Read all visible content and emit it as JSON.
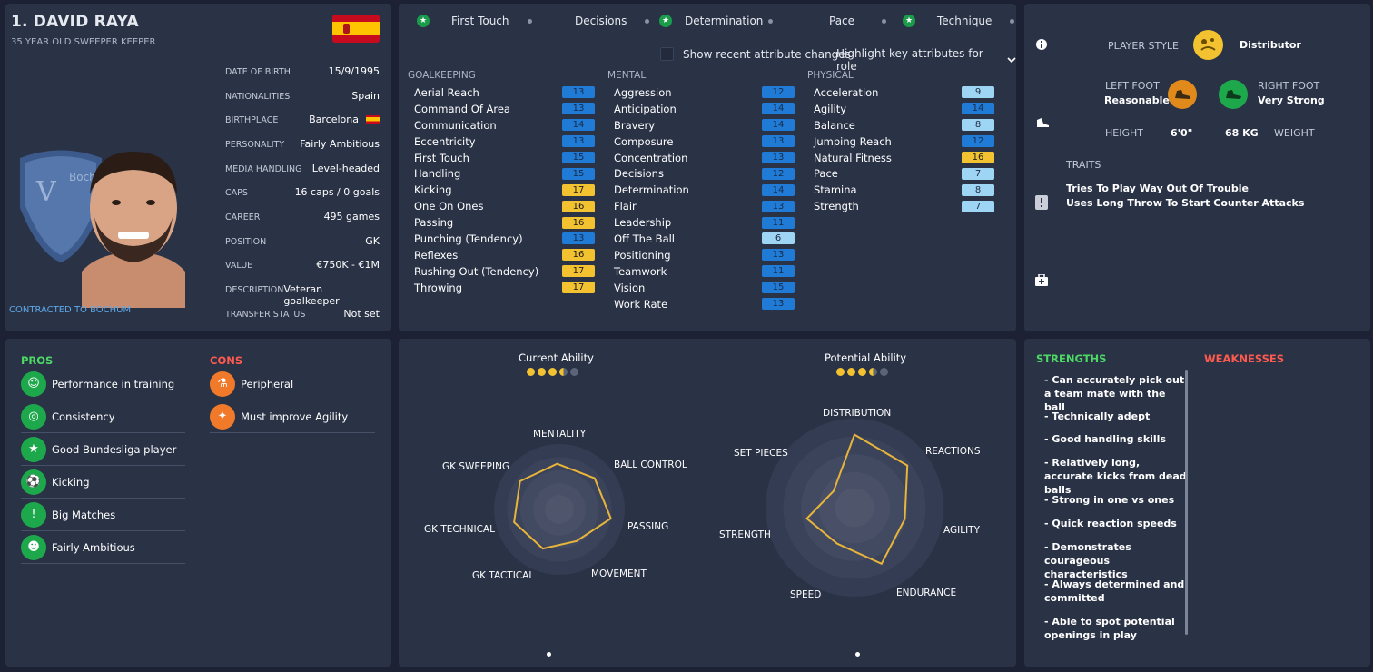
{
  "player": {
    "name": "1. DAVID RAYA",
    "subtitle": "35 YEAR OLD SWEEPER KEEPER",
    "contract": "CONTRACTED TO BOCHUM",
    "info": [
      {
        "k": "DATE OF BIRTH",
        "v": "15/9/1995"
      },
      {
        "k": "NATIONALITIES",
        "v": "Spain"
      },
      {
        "k": "BIRTHPLACE",
        "v": "Barcelona"
      },
      {
        "k": "PERSONALITY",
        "v": "Fairly Ambitious"
      },
      {
        "k": "MEDIA HANDLING",
        "v": "Level-headed"
      },
      {
        "k": "CAPS",
        "v": "16 caps / 0 goals"
      },
      {
        "k": "CAREER",
        "v": "495 games"
      },
      {
        "k": "POSITION",
        "v": "GK"
      },
      {
        "k": "VALUE",
        "v": "€750K - €1M"
      },
      {
        "k": "DESCRIPTION",
        "v": "Veteran goalkeeper"
      },
      {
        "k": "TRANSFER STATUS",
        "v": "Not set"
      }
    ]
  },
  "tabs": {
    "first_touch": "First Touch",
    "decisions": "Decisions",
    "determination": "Determination",
    "pace": "Pace",
    "technique": "Technique"
  },
  "controls": {
    "recent_changes": "Show recent attribute changes",
    "highlight": "Highlight key attributes for role"
  },
  "attributes": {
    "goalkeeping_title": "GOALKEEPING",
    "mental_title": "MENTAL",
    "physical_title": "PHYSICAL",
    "goalkeeping": [
      {
        "n": "Aerial Reach",
        "v": "13",
        "c": "blue"
      },
      {
        "n": "Command Of Area",
        "v": "13",
        "c": "blue"
      },
      {
        "n": "Communication",
        "v": "14",
        "c": "blue"
      },
      {
        "n": "Eccentricity",
        "v": "13",
        "c": "blue"
      },
      {
        "n": "First Touch",
        "v": "15",
        "c": "blue"
      },
      {
        "n": "Handling",
        "v": "15",
        "c": "blue"
      },
      {
        "n": "Kicking",
        "v": "17",
        "c": "yellow"
      },
      {
        "n": "One On Ones",
        "v": "16",
        "c": "yellow"
      },
      {
        "n": "Passing",
        "v": "16",
        "c": "yellow"
      },
      {
        "n": "Punching (Tendency)",
        "v": "13",
        "c": "blue"
      },
      {
        "n": "Reflexes",
        "v": "16",
        "c": "yellow"
      },
      {
        "n": "Rushing Out (Tendency)",
        "v": "17",
        "c": "yellow"
      },
      {
        "n": "Throwing",
        "v": "17",
        "c": "yellow"
      }
    ],
    "mental": [
      {
        "n": "Aggression",
        "v": "12",
        "c": "blue"
      },
      {
        "n": "Anticipation",
        "v": "14",
        "c": "blue"
      },
      {
        "n": "Bravery",
        "v": "14",
        "c": "blue"
      },
      {
        "n": "Composure",
        "v": "13",
        "c": "blue"
      },
      {
        "n": "Concentration",
        "v": "13",
        "c": "blue"
      },
      {
        "n": "Decisions",
        "v": "12",
        "c": "blue"
      },
      {
        "n": "Determination",
        "v": "14",
        "c": "blue"
      },
      {
        "n": "Flair",
        "v": "13",
        "c": "blue"
      },
      {
        "n": "Leadership",
        "v": "11",
        "c": "blue"
      },
      {
        "n": "Off The Ball",
        "v": "6",
        "c": "light"
      },
      {
        "n": "Positioning",
        "v": "13",
        "c": "blue"
      },
      {
        "n": "Teamwork",
        "v": "11",
        "c": "blue"
      },
      {
        "n": "Vision",
        "v": "15",
        "c": "blue"
      },
      {
        "n": "Work Rate",
        "v": "13",
        "c": "blue"
      }
    ],
    "physical": [
      {
        "n": "Acceleration",
        "v": "9",
        "c": "light"
      },
      {
        "n": "Agility",
        "v": "14",
        "c": "blue"
      },
      {
        "n": "Balance",
        "v": "8",
        "c": "light"
      },
      {
        "n": "Jumping Reach",
        "v": "12",
        "c": "blue"
      },
      {
        "n": "Natural Fitness",
        "v": "16",
        "c": "yellow"
      },
      {
        "n": "Pace",
        "v": "7",
        "c": "light"
      },
      {
        "n": "Stamina",
        "v": "8",
        "c": "light"
      },
      {
        "n": "Strength",
        "v": "7",
        "c": "light"
      }
    ]
  },
  "style": {
    "player_style_label": "PLAYER STYLE",
    "player_style": "Distributor",
    "left_foot_label": "LEFT FOOT",
    "left_foot": "Reasonable",
    "right_foot_label": "RIGHT FOOT",
    "right_foot": "Very Strong",
    "height_label": "HEIGHT",
    "height": "6'0\"",
    "weight": "68 KG",
    "weight_label": "WEIGHT",
    "traits_label": "TRAITS",
    "traits": [
      "Tries To Play Way Out Of Trouble",
      "Uses Long Throw To Start Counter Attacks"
    ]
  },
  "pros_cons": {
    "pros_title": "PROS",
    "cons_title": "CONS",
    "pros": [
      "Performance in training",
      "Consistency",
      "Good Bundesliga player",
      "Kicking",
      "Big Matches",
      "Fairly Ambitious"
    ],
    "cons": [
      "Peripheral",
      "Must improve Agility"
    ]
  },
  "ability": {
    "current_title": "Current Ability",
    "potential_title": "Potential Ability",
    "current_stars": 3.5,
    "potential_stars": 3.5,
    "radar1_labels": [
      "MENTALITY",
      "BALL CONTROL",
      "PASSING",
      "MOVEMENT",
      "GK TACTICAL",
      "GK TECHNICAL",
      "GK SWEEPING"
    ],
    "radar2_labels": [
      "DISTRIBUTION",
      "REACTIONS",
      "AGILITY",
      "ENDURANCE",
      "SPEED",
      "STRENGTH",
      "SET PIECES"
    ]
  },
  "chart_data": [
    {
      "type": "radar",
      "title": "Current Ability",
      "categories": [
        "MENTALITY",
        "BALL CONTROL",
        "PASSING",
        "MOVEMENT",
        "GK TACTICAL",
        "GK TECHNICAL",
        "GK SWEEPING"
      ],
      "values": [
        0.7,
        0.72,
        0.8,
        0.55,
        0.65,
        0.72,
        0.74
      ],
      "range": [
        0,
        1
      ]
    },
    {
      "type": "radar",
      "title": "Potential Ability",
      "categories": [
        "DISTRIBUTION",
        "REACTIONS",
        "AGILITY",
        "ENDURANCE",
        "SPEED",
        "STRENGTH",
        "SET PIECES"
      ],
      "values": [
        0.82,
        0.76,
        0.58,
        0.7,
        0.45,
        0.55,
        0.3
      ],
      "range": [
        0,
        1
      ]
    }
  ],
  "strengths": {
    "strengths_title": "STRENGTHS",
    "weaknesses_title": "WEAKNESSES",
    "items": [
      "- Can accurately pick out a team mate with the ball",
      "- Technically adept",
      "- Good handling skills",
      "- Relatively long, accurate kicks from dead balls",
      "- Strong in one vs ones",
      "- Quick reaction speeds",
      "- Demonstrates courageous characteristics",
      "- Always determined and committed",
      "- Able to spot potential openings in play"
    ]
  },
  "colors": {
    "panel": "#2a3246",
    "bg": "#1c2233",
    "blue_badge": "#1f7bd6",
    "yellow_badge": "#f2c231",
    "light_badge": "#9fd5f4",
    "pros_green": "#4cd964",
    "cons_red": "#ff5a4f",
    "radar_line": "#e8b53a"
  }
}
